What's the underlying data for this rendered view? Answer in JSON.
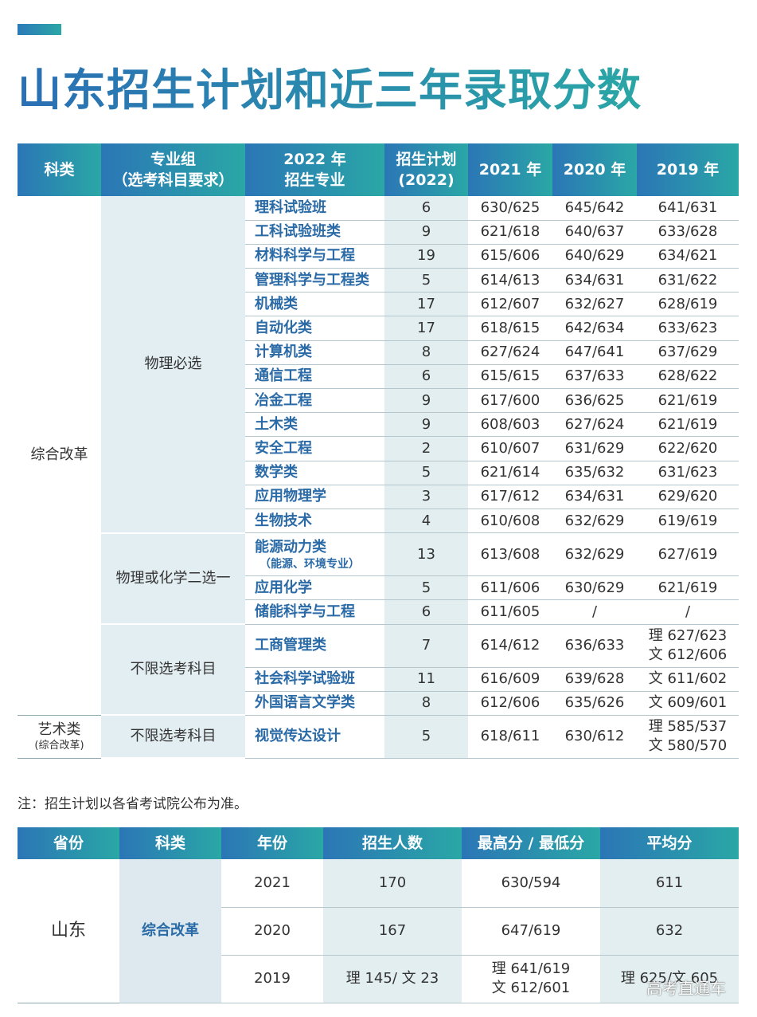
{
  "title": "山东招生计划和近三年录取分数",
  "table1": {
    "header": [
      [
        "科类"
      ],
      [
        "专业组",
        "（选考科目要求）"
      ],
      [
        "2022 年",
        "招生专业"
      ],
      [
        "招生计划",
        "(2022)"
      ],
      [
        "2021 年"
      ],
      [
        "2020 年"
      ],
      [
        "2019 年"
      ]
    ],
    "sections": [
      {
        "category": [
          "综合改革"
        ],
        "groups": [
          {
            "name": "物理必选",
            "rows": [
              [
                [
                  "理科试验班"
                ],
                "6",
                "630/625",
                "645/642",
                [
                  "641/631"
                ]
              ],
              [
                [
                  "工科试验班类"
                ],
                "9",
                "621/618",
                "640/637",
                [
                  "633/628"
                ]
              ],
              [
                [
                  "材料科学与工程"
                ],
                "19",
                "615/606",
                "640/629",
                [
                  "634/621"
                ]
              ],
              [
                [
                  "管理科学与工程类"
                ],
                "5",
                "614/613",
                "634/631",
                [
                  "631/622"
                ]
              ],
              [
                [
                  "机械类"
                ],
                "17",
                "612/607",
                "632/627",
                [
                  "628/619"
                ]
              ],
              [
                [
                  "自动化类"
                ],
                "17",
                "618/615",
                "642/634",
                [
                  "633/623"
                ]
              ],
              [
                [
                  "计算机类"
                ],
                "8",
                "627/624",
                "647/641",
                [
                  "637/629"
                ]
              ],
              [
                [
                  "通信工程"
                ],
                "6",
                "615/615",
                "637/633",
                [
                  "628/622"
                ]
              ],
              [
                [
                  "冶金工程"
                ],
                "9",
                "617/600",
                "636/625",
                [
                  "621/619"
                ]
              ],
              [
                [
                  "土木类"
                ],
                "9",
                "608/603",
                "627/624",
                [
                  "621/619"
                ]
              ],
              [
                [
                  "安全工程"
                ],
                "2",
                "610/607",
                "631/629",
                [
                  "622/620"
                ]
              ],
              [
                [
                  "数学类"
                ],
                "5",
                "621/614",
                "635/632",
                [
                  "631/623"
                ]
              ],
              [
                [
                  "应用物理学"
                ],
                "3",
                "617/612",
                "634/631",
                [
                  "629/620"
                ]
              ],
              [
                [
                  "生物技术"
                ],
                "4",
                "610/608",
                "632/629",
                [
                  "619/619"
                ]
              ]
            ]
          },
          {
            "name": "物理或化学二选一",
            "rows": [
              [
                [
                  "能源动力类",
                  "（能源、环境专业）"
                ],
                "13",
                "613/608",
                "632/629",
                [
                  "627/619"
                ]
              ],
              [
                [
                  "应用化学"
                ],
                "5",
                "611/606",
                "630/629",
                [
                  "621/619"
                ]
              ],
              [
                [
                  "储能科学与工程"
                ],
                "6",
                "611/605",
                "/",
                [
                  "/"
                ]
              ]
            ]
          },
          {
            "name": "不限选考科目",
            "rows": [
              [
                [
                  "工商管理类"
                ],
                "7",
                "614/612",
                "636/633",
                [
                  "理 627/623",
                  "文 612/606"
                ]
              ],
              [
                [
                  "社会科学试验班"
                ],
                "11",
                "616/609",
                "639/628",
                [
                  "文 611/602"
                ]
              ],
              [
                [
                  "外国语言文学类"
                ],
                "8",
                "612/606",
                "635/626",
                [
                  "文 609/601"
                ]
              ]
            ]
          }
        ]
      },
      {
        "category": [
          "艺术类",
          "(综合改革)"
        ],
        "groups": [
          {
            "name": "不限选考科目",
            "rows": [
              [
                [
                  "视觉传达设计"
                ],
                "5",
                "618/611",
                "630/612",
                [
                  "理 585/537",
                  "文 580/570"
                ]
              ]
            ]
          }
        ]
      }
    ]
  },
  "note": "注：招生计划以各省考试院公布为准。",
  "table2": {
    "header": [
      "省份",
      "科类",
      "年份",
      "招生人数",
      "最高分 / 最低分",
      "平均分"
    ],
    "province": "山东",
    "category": "综合改革",
    "rows": [
      [
        "2021",
        "170",
        [
          "630/594"
        ],
        "611"
      ],
      [
        "2020",
        "167",
        [
          "647/619"
        ],
        "632"
      ],
      [
        "2019",
        "理 145/ 文 23",
        [
          "理 641/619",
          "文 612/601"
        ],
        "理 625/文 605"
      ]
    ]
  },
  "watermark": "高考直通车"
}
